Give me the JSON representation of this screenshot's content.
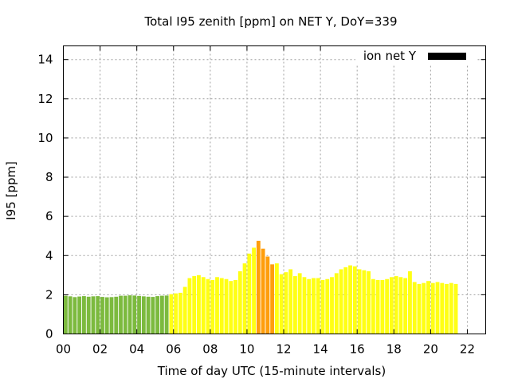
{
  "chart_data": {
    "type": "bar",
    "title": "Total I95 zenith [ppm] on NET Y, DoY=339",
    "xlabel": "Time of day UTC (15-minute intervals)",
    "ylabel": "I95 [ppm]",
    "xlim": [
      0,
      23
    ],
    "ylim": [
      0,
      14.7
    ],
    "interval_hours": 0.25,
    "grid": true,
    "legend_position": "top-right",
    "x_ticks": [
      "00",
      "02",
      "04",
      "06",
      "08",
      "10",
      "12",
      "14",
      "16",
      "18",
      "20",
      "22"
    ],
    "y_ticks": [
      "0",
      "2",
      "4",
      "6",
      "8",
      "10",
      "12",
      "14"
    ],
    "series": [
      {
        "name": "ion net Y",
        "legend_color": "#000000",
        "values": [
          1.95,
          1.92,
          1.88,
          1.91,
          1.93,
          1.9,
          1.92,
          1.93,
          1.89,
          1.87,
          1.88,
          1.9,
          1.95,
          1.95,
          1.97,
          1.96,
          1.94,
          1.92,
          1.9,
          1.89,
          1.93,
          1.95,
          1.96,
          2.03,
          2.07,
          2.1,
          2.4,
          2.85,
          2.95,
          3.0,
          2.9,
          2.8,
          2.75,
          2.9,
          2.85,
          2.8,
          2.7,
          2.75,
          3.2,
          3.6,
          4.1,
          4.4,
          4.75,
          4.35,
          3.95,
          3.55,
          3.6,
          3.05,
          3.15,
          3.3,
          2.95,
          3.1,
          2.9,
          2.8,
          2.85,
          2.85,
          2.75,
          2.8,
          2.9,
          3.1,
          3.3,
          3.4,
          3.5,
          3.45,
          3.3,
          3.25,
          3.2,
          2.8,
          2.75,
          2.75,
          2.8,
          2.9,
          2.95,
          2.9,
          2.85,
          3.2,
          2.65,
          2.55,
          2.6,
          2.7,
          2.6,
          2.65,
          2.6,
          2.55,
          2.6,
          2.55
        ]
      }
    ],
    "colors": {
      "low": "#7cba3e",
      "moderate": "#ffff14",
      "elevated": "#ff9e0c",
      "grid": "#a0a0a0",
      "legend": "#000000"
    },
    "color_thresholds": [
      {
        "range": [
          0,
          5.75
        ],
        "color": "low"
      },
      {
        "range": [
          10.5,
          11.5
        ],
        "color": "elevated"
      }
    ]
  }
}
